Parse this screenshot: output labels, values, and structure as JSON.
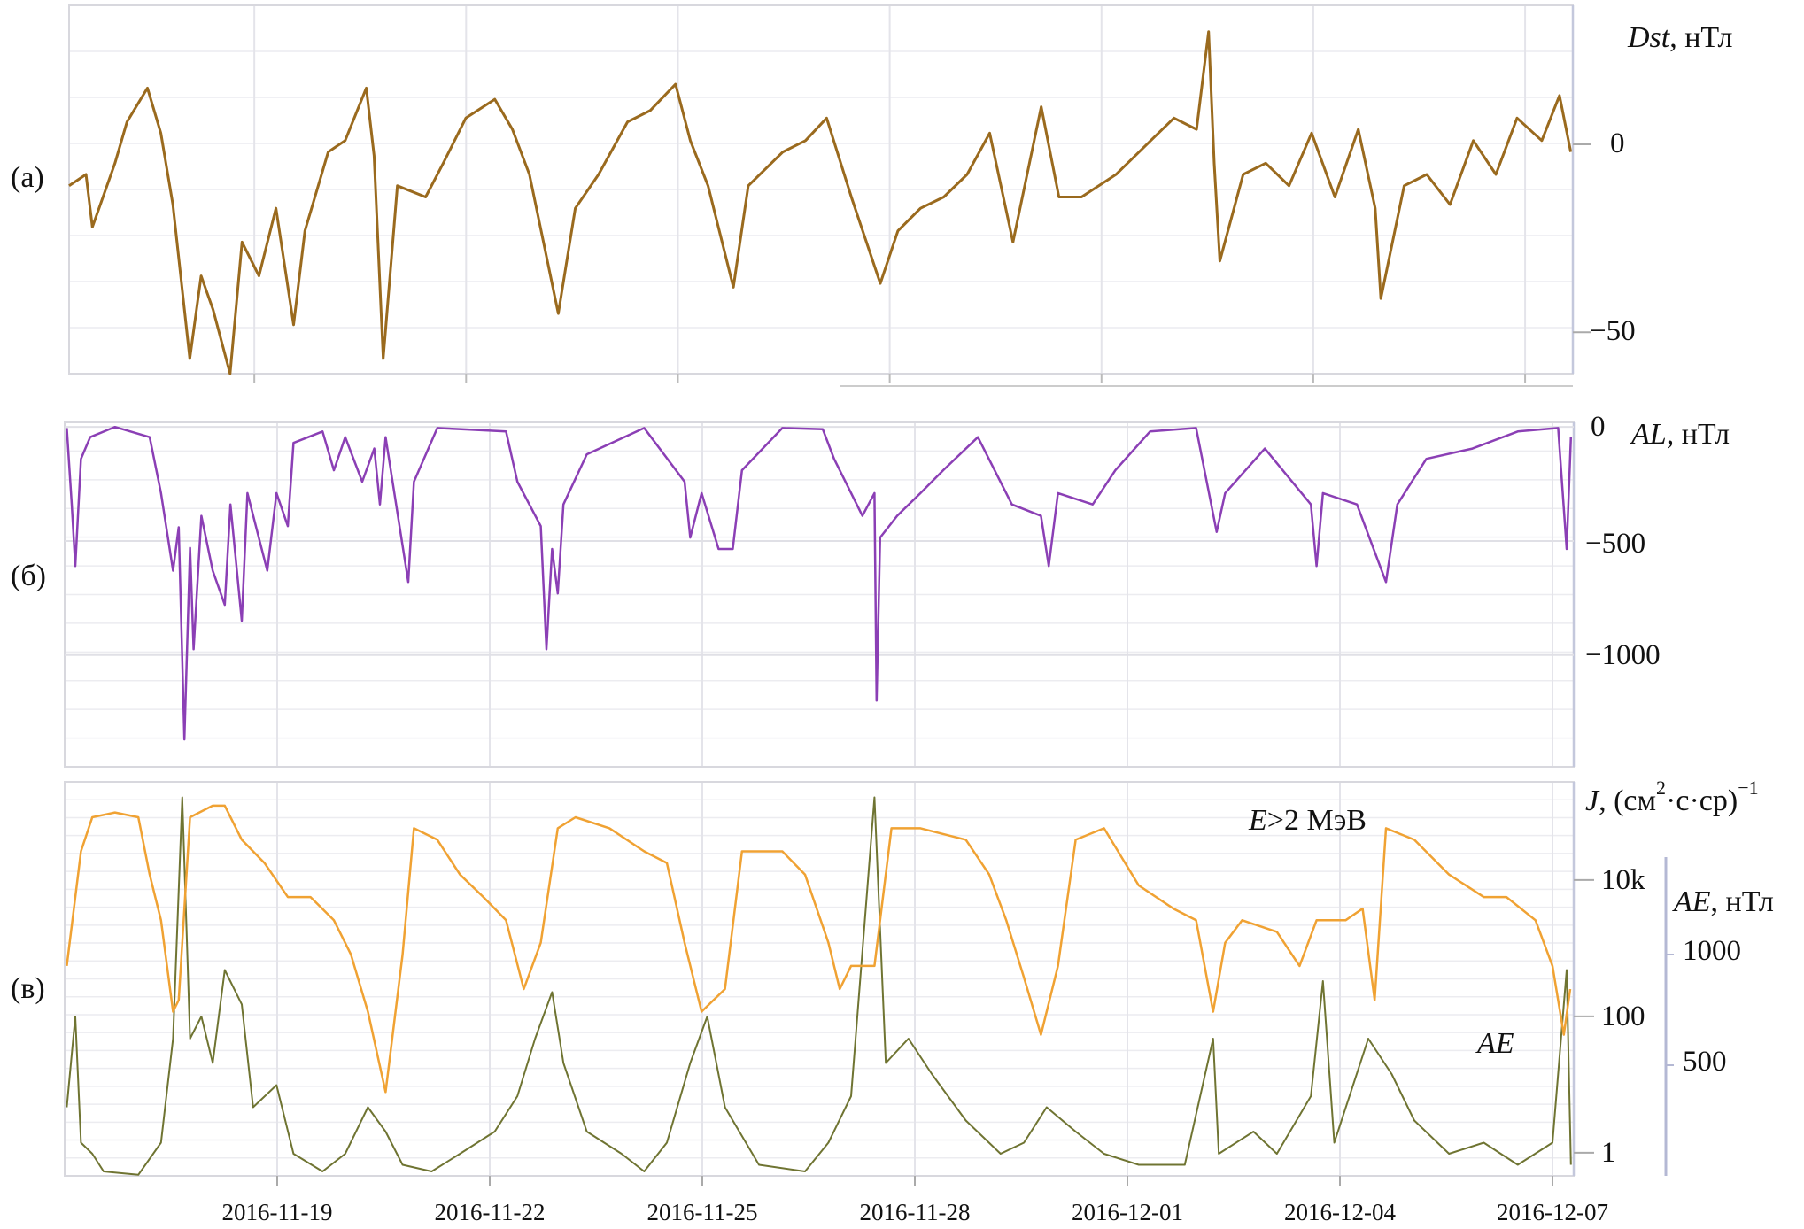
{
  "chart_data": [
    {
      "panel": "(а)",
      "type": "line",
      "ylabel_var": "Dst",
      "ylabel_unit": ", нТл",
      "xlabel": "",
      "x_units": "days since 2016-11-16",
      "xlim": [
        0,
        21.3
      ],
      "ylim": [
        -61,
        37
      ],
      "yticks": [
        {
          "value": 0,
          "label": "0"
        },
        {
          "value": -50,
          "label": "−50"
        }
      ],
      "grid": true,
      "color": "#9a6a1e",
      "series": [
        {
          "name": "Dst",
          "x": [
            0,
            0.24,
            0.33,
            0.65,
            0.82,
            1.11,
            1.3,
            1.47,
            1.71,
            1.87,
            2.04,
            2.28,
            2.45,
            2.69,
            2.93,
            3.18,
            3.34,
            3.67,
            3.91,
            4.21,
            4.32,
            4.45,
            4.65,
            5.05,
            5.3,
            5.62,
            6.03,
            6.28,
            6.52,
            6.93,
            7.17,
            7.5,
            7.91,
            8.23,
            8.59,
            8.8,
            9.05,
            9.41,
            9.62,
            10.11,
            10.43,
            10.73,
            11.08,
            11.49,
            11.74,
            12.06,
            12.39,
            12.72,
            13.04,
            13.37,
            13.77,
            14.02,
            14.34,
            14.83,
            15.32,
            15.65,
            15.97,
            16.14,
            16.22,
            16.3,
            16.63,
            16.95,
            17.28,
            17.6,
            17.93,
            18.26,
            18.5,
            18.58,
            18.91,
            19.23,
            19.56,
            19.89,
            20.21,
            20.51,
            20.86,
            21.11,
            21.27
          ],
          "y": [
            -11,
            -8,
            -22,
            -5,
            6,
            15,
            3,
            -16,
            -57,
            -35,
            -44,
            -61,
            -26,
            -35,
            -17,
            -48,
            -23,
            -2,
            1,
            15,
            -3,
            -57,
            -11,
            -14,
            -5,
            7,
            12,
            4,
            -8,
            -45,
            -17,
            -8,
            6,
            9,
            16,
            1,
            -11,
            -38,
            -11,
            -2,
            1,
            7,
            -14,
            -37,
            -23,
            -17,
            -14,
            -8,
            3,
            -26,
            10,
            -14,
            -14,
            -8,
            1,
            7,
            4,
            30,
            -5,
            -31,
            -8,
            -5,
            -11,
            3,
            -14,
            4,
            -17,
            -41,
            -11,
            -8,
            -16,
            1,
            -8,
            7,
            1,
            13,
            -2
          ]
        }
      ]
    },
    {
      "panel": "(б)",
      "type": "line",
      "ylabel_var": "AL",
      "ylabel_unit": ", нТл",
      "x_units": "days since 2016-11-16",
      "xlim": [
        0,
        21.3
      ],
      "ylim": [
        -1490,
        20
      ],
      "yticks": [
        {
          "value": 0,
          "label": "0"
        },
        {
          "value": -500,
          "label": "−500"
        },
        {
          "value": -1000,
          "label": "−1000"
        }
      ],
      "grid": true,
      "color": "#8b3fb5",
      "series": [
        {
          "name": "AL",
          "x": [
            0.03,
            0.1,
            0.15,
            0.23,
            0.36,
            0.71,
            1.2,
            1.36,
            1.53,
            1.61,
            1.69,
            1.77,
            1.82,
            1.93,
            2.09,
            2.26,
            2.34,
            2.5,
            2.58,
            2.74,
            2.86,
            2.99,
            3.15,
            3.23,
            3.64,
            3.8,
            3.96,
            4.2,
            4.37,
            4.45,
            4.53,
            4.85,
            4.93,
            5.26,
            6.23,
            6.39,
            6.72,
            6.8,
            6.88,
            6.96,
            7.04,
            7.37,
            8.18,
            8.75,
            8.83,
            8.99,
            9.23,
            9.43,
            9.56,
            10.13,
            10.7,
            10.86,
            11.26,
            11.43,
            11.46,
            11.51,
            11.75,
            12.08,
            12.4,
            12.89,
            13.37,
            13.78,
            13.89,
            14.02,
            14.51,
            14.83,
            15.32,
            15.97,
            16.26,
            16.38,
            16.94,
            17.59,
            17.67,
            17.76,
            18.24,
            18.65,
            18.81,
            19.22,
            19.87,
            20.51,
            21.08,
            21.2,
            21.26
          ],
          "y": [
            -5,
            -340,
            -610,
            -140,
            -45,
            0,
            -45,
            -290,
            -630,
            -440,
            -1370,
            -530,
            -975,
            -390,
            -630,
            -780,
            -340,
            -850,
            -290,
            -485,
            -630,
            -290,
            -435,
            -70,
            -20,
            -190,
            -45,
            -240,
            -95,
            -340,
            -45,
            -680,
            -240,
            -5,
            -20,
            -240,
            -435,
            -975,
            -535,
            -730,
            -340,
            -120,
            -5,
            -240,
            -485,
            -290,
            -535,
            -535,
            -190,
            -5,
            -10,
            -140,
            -390,
            -290,
            -1200,
            -485,
            -390,
            -290,
            -190,
            -45,
            -340,
            -390,
            -610,
            -290,
            -340,
            -190,
            -20,
            -5,
            -460,
            -290,
            -95,
            -340,
            -610,
            -290,
            -340,
            -680,
            -340,
            -140,
            -95,
            -20,
            -5,
            -535,
            -45
          ]
        }
      ]
    },
    {
      "panel": "(в)",
      "type": "line",
      "x_units": "days since 2016-11-16",
      "xlim": [
        0,
        21.3
      ],
      "left_axis": {
        "label_var": "J",
        "label_unit_pre": ", (см",
        "label_sup": "2",
        "label_unit_post": "·с·ср)",
        "label_exp": "−1",
        "scale": "log",
        "ylim_log10": [
          -0.34,
          5.44
        ],
        "yticks": [
          {
            "log10": 4,
            "label": "10k"
          },
          {
            "log10": 2,
            "label": "100"
          },
          {
            "log10": 0,
            "label": "1"
          }
        ]
      },
      "right_axis": {
        "label_var": "AE",
        "label_unit": ", нТл",
        "scale": "linear",
        "ylim": [
          0,
          1780
        ],
        "yticks": [
          {
            "value": 1000,
            "label": "1000"
          },
          {
            "value": 500,
            "label": "500"
          }
        ]
      },
      "annotations": {
        "flux": "E>2 МэВ",
        "flux_var": "E",
        "flux_rest": ">2 МэВ",
        "ae": "AE"
      },
      "grid": true,
      "series": [
        {
          "name": "E>2 МэВ electron flux",
          "axis": "left",
          "color": "#f0a233",
          "x": [
            0.03,
            0.23,
            0.39,
            0.71,
            1.04,
            1.2,
            1.36,
            1.53,
            1.61,
            1.77,
            2.09,
            2.26,
            2.5,
            2.82,
            3.15,
            3.47,
            3.8,
            4.04,
            4.28,
            4.53,
            4.77,
            4.93,
            5.26,
            5.58,
            5.91,
            6.23,
            6.48,
            6.72,
            6.96,
            7.21,
            7.69,
            8.18,
            8.5,
            8.75,
            8.99,
            9.32,
            9.56,
            10.13,
            10.45,
            10.78,
            10.94,
            11.1,
            11.43,
            11.67,
            12.08,
            12.72,
            13.05,
            13.29,
            13.54,
            13.78,
            14.02,
            14.27,
            14.67,
            15.16,
            15.65,
            15.97,
            16.21,
            16.38,
            16.62,
            17.11,
            17.43,
            17.67,
            18.08,
            18.32,
            18.49,
            18.65,
            19.05,
            19.54,
            20.03,
            20.35,
            20.76,
            21.0,
            21.16,
            21.25
          ],
          "log10_y": [
            2.74,
            4.42,
            4.92,
            4.99,
            4.92,
            4.08,
            3.41,
            2.07,
            2.24,
            4.92,
            5.09,
            5.09,
            4.59,
            4.25,
            3.75,
            3.75,
            3.41,
            2.91,
            2.07,
            0.89,
            2.91,
            4.76,
            4.59,
            4.08,
            3.75,
            3.41,
            2.4,
            3.08,
            4.76,
            4.92,
            4.76,
            4.42,
            4.25,
            3.08,
            2.07,
            2.4,
            4.42,
            4.42,
            4.08,
            3.08,
            2.4,
            2.74,
            2.74,
            4.76,
            4.76,
            4.59,
            4.08,
            3.41,
            2.57,
            1.73,
            2.74,
            4.59,
            4.76,
            3.92,
            3.58,
            3.41,
            2.07,
            3.08,
            3.41,
            3.24,
            2.74,
            3.41,
            3.41,
            3.58,
            2.24,
            4.76,
            4.59,
            4.08,
            3.75,
            3.75,
            3.41,
            2.74,
            1.73,
            2.4
          ]
        },
        {
          "name": "AE",
          "axis": "right",
          "color": "#6f7432",
          "x": [
            0.03,
            0.15,
            0.23,
            0.39,
            0.55,
            1.04,
            1.36,
            1.53,
            1.66,
            1.77,
            1.93,
            2.09,
            2.26,
            2.5,
            2.66,
            2.99,
            3.23,
            3.64,
            3.96,
            4.28,
            4.53,
            4.77,
            5.18,
            5.58,
            6.07,
            6.39,
            6.64,
            6.88,
            7.04,
            7.37,
            7.86,
            8.18,
            8.5,
            8.83,
            9.07,
            9.32,
            9.8,
            10.45,
            10.78,
            11.1,
            11.43,
            11.59,
            11.91,
            12.24,
            12.72,
            13.21,
            13.54,
            13.86,
            14.27,
            14.67,
            15.16,
            15.81,
            16.21,
            16.29,
            16.78,
            17.11,
            17.59,
            17.76,
            17.92,
            18.4,
            18.73,
            19.05,
            19.54,
            20.03,
            20.51,
            21.0,
            21.2,
            21.26
          ],
          "y": [
            310,
            720,
            150,
            100,
            20,
            5,
            150,
            620,
            1710,
            620,
            720,
            510,
            930,
            775,
            310,
            410,
            100,
            20,
            100,
            310,
            200,
            50,
            20,
            100,
            200,
            360,
            620,
            830,
            510,
            200,
            100,
            20,
            150,
            510,
            720,
            310,
            50,
            20,
            150,
            360,
            1710,
            510,
            620,
            460,
            250,
            100,
            150,
            310,
            200,
            100,
            50,
            50,
            620,
            100,
            200,
            100,
            360,
            880,
            150,
            620,
            460,
            250,
            100,
            150,
            50,
            150,
            930,
            50
          ]
        }
      ],
      "xticks": [
        {
          "day": 3,
          "label": "2016-11-19"
        },
        {
          "day": 6,
          "label": "2016-11-22"
        },
        {
          "day": 9,
          "label": "2016-11-25"
        },
        {
          "day": 12,
          "label": "2016-11-28"
        },
        {
          "day": 15,
          "label": "2016-12-01"
        },
        {
          "day": 18,
          "label": "2016-12-04"
        },
        {
          "day": 21,
          "label": "2016-12-07"
        }
      ]
    }
  ]
}
